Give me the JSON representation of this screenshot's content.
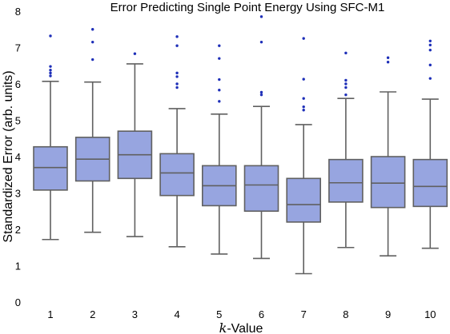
{
  "chart_data": {
    "type": "box",
    "title": "Error Predicting Single Point Energy Using SFC-M1",
    "xlabel_italic": "k",
    "xlabel_rest": "-Value",
    "ylabel": "Standardized Error (arb. units)",
    "ylim": [
      0,
      8
    ],
    "yticks": [
      0,
      1,
      2,
      3,
      4,
      5,
      6,
      7,
      8
    ],
    "grid": false,
    "categories": [
      "1",
      "2",
      "3",
      "4",
      "5",
      "6",
      "7",
      "8",
      "9",
      "10"
    ],
    "boxes": [
      {
        "whisker_low": 1.72,
        "q1": 3.08,
        "median": 3.7,
        "q3": 4.27,
        "whisker_high": 6.07,
        "outliers": [
          6.22,
          6.3,
          6.38,
          6.48,
          7.32
        ]
      },
      {
        "whisker_low": 1.92,
        "q1": 3.33,
        "median": 3.93,
        "q3": 4.53,
        "whisker_high": 6.05,
        "outliers": [
          6.67,
          7.15,
          7.5
        ]
      },
      {
        "whisker_low": 1.8,
        "q1": 3.4,
        "median": 4.05,
        "q3": 4.7,
        "whisker_high": 6.55,
        "outliers": [
          6.83
        ]
      },
      {
        "whisker_low": 1.52,
        "q1": 2.93,
        "median": 3.55,
        "q3": 4.08,
        "whisker_high": 5.32,
        "outliers": [
          5.9,
          6.0,
          6.2,
          6.3,
          7.05,
          7.3
        ]
      },
      {
        "whisker_low": 1.32,
        "q1": 2.65,
        "median": 3.2,
        "q3": 3.75,
        "whisker_high": 5.17,
        "outliers": [
          5.52,
          5.83,
          6.12,
          6.7,
          7.05
        ]
      },
      {
        "whisker_low": 1.2,
        "q1": 2.5,
        "median": 3.22,
        "q3": 3.75,
        "whisker_high": 5.38,
        "outliers": [
          5.7,
          5.77,
          7.15,
          7.85
        ]
      },
      {
        "whisker_low": 0.78,
        "q1": 2.2,
        "median": 2.68,
        "q3": 3.4,
        "whisker_high": 4.88,
        "outliers": [
          5.28,
          5.37,
          5.6,
          6.13,
          7.25
        ]
      },
      {
        "whisker_low": 1.5,
        "q1": 2.75,
        "median": 3.28,
        "q3": 3.92,
        "whisker_high": 5.6,
        "outliers": [
          5.7,
          5.9,
          6.0,
          6.1,
          6.85
        ]
      },
      {
        "whisker_low": 1.27,
        "q1": 2.6,
        "median": 3.27,
        "q3": 4.0,
        "whisker_high": 5.78,
        "outliers": [
          6.6,
          6.72
        ]
      },
      {
        "whisker_low": 1.48,
        "q1": 2.63,
        "median": 3.18,
        "q3": 3.92,
        "whisker_high": 5.58,
        "outliers": [
          6.15,
          6.52,
          6.93,
          7.07,
          7.18
        ]
      }
    ],
    "colors": {
      "box_fill": "#97a5e0",
      "line": "#606060",
      "outlier": "#1e2fb8"
    }
  }
}
